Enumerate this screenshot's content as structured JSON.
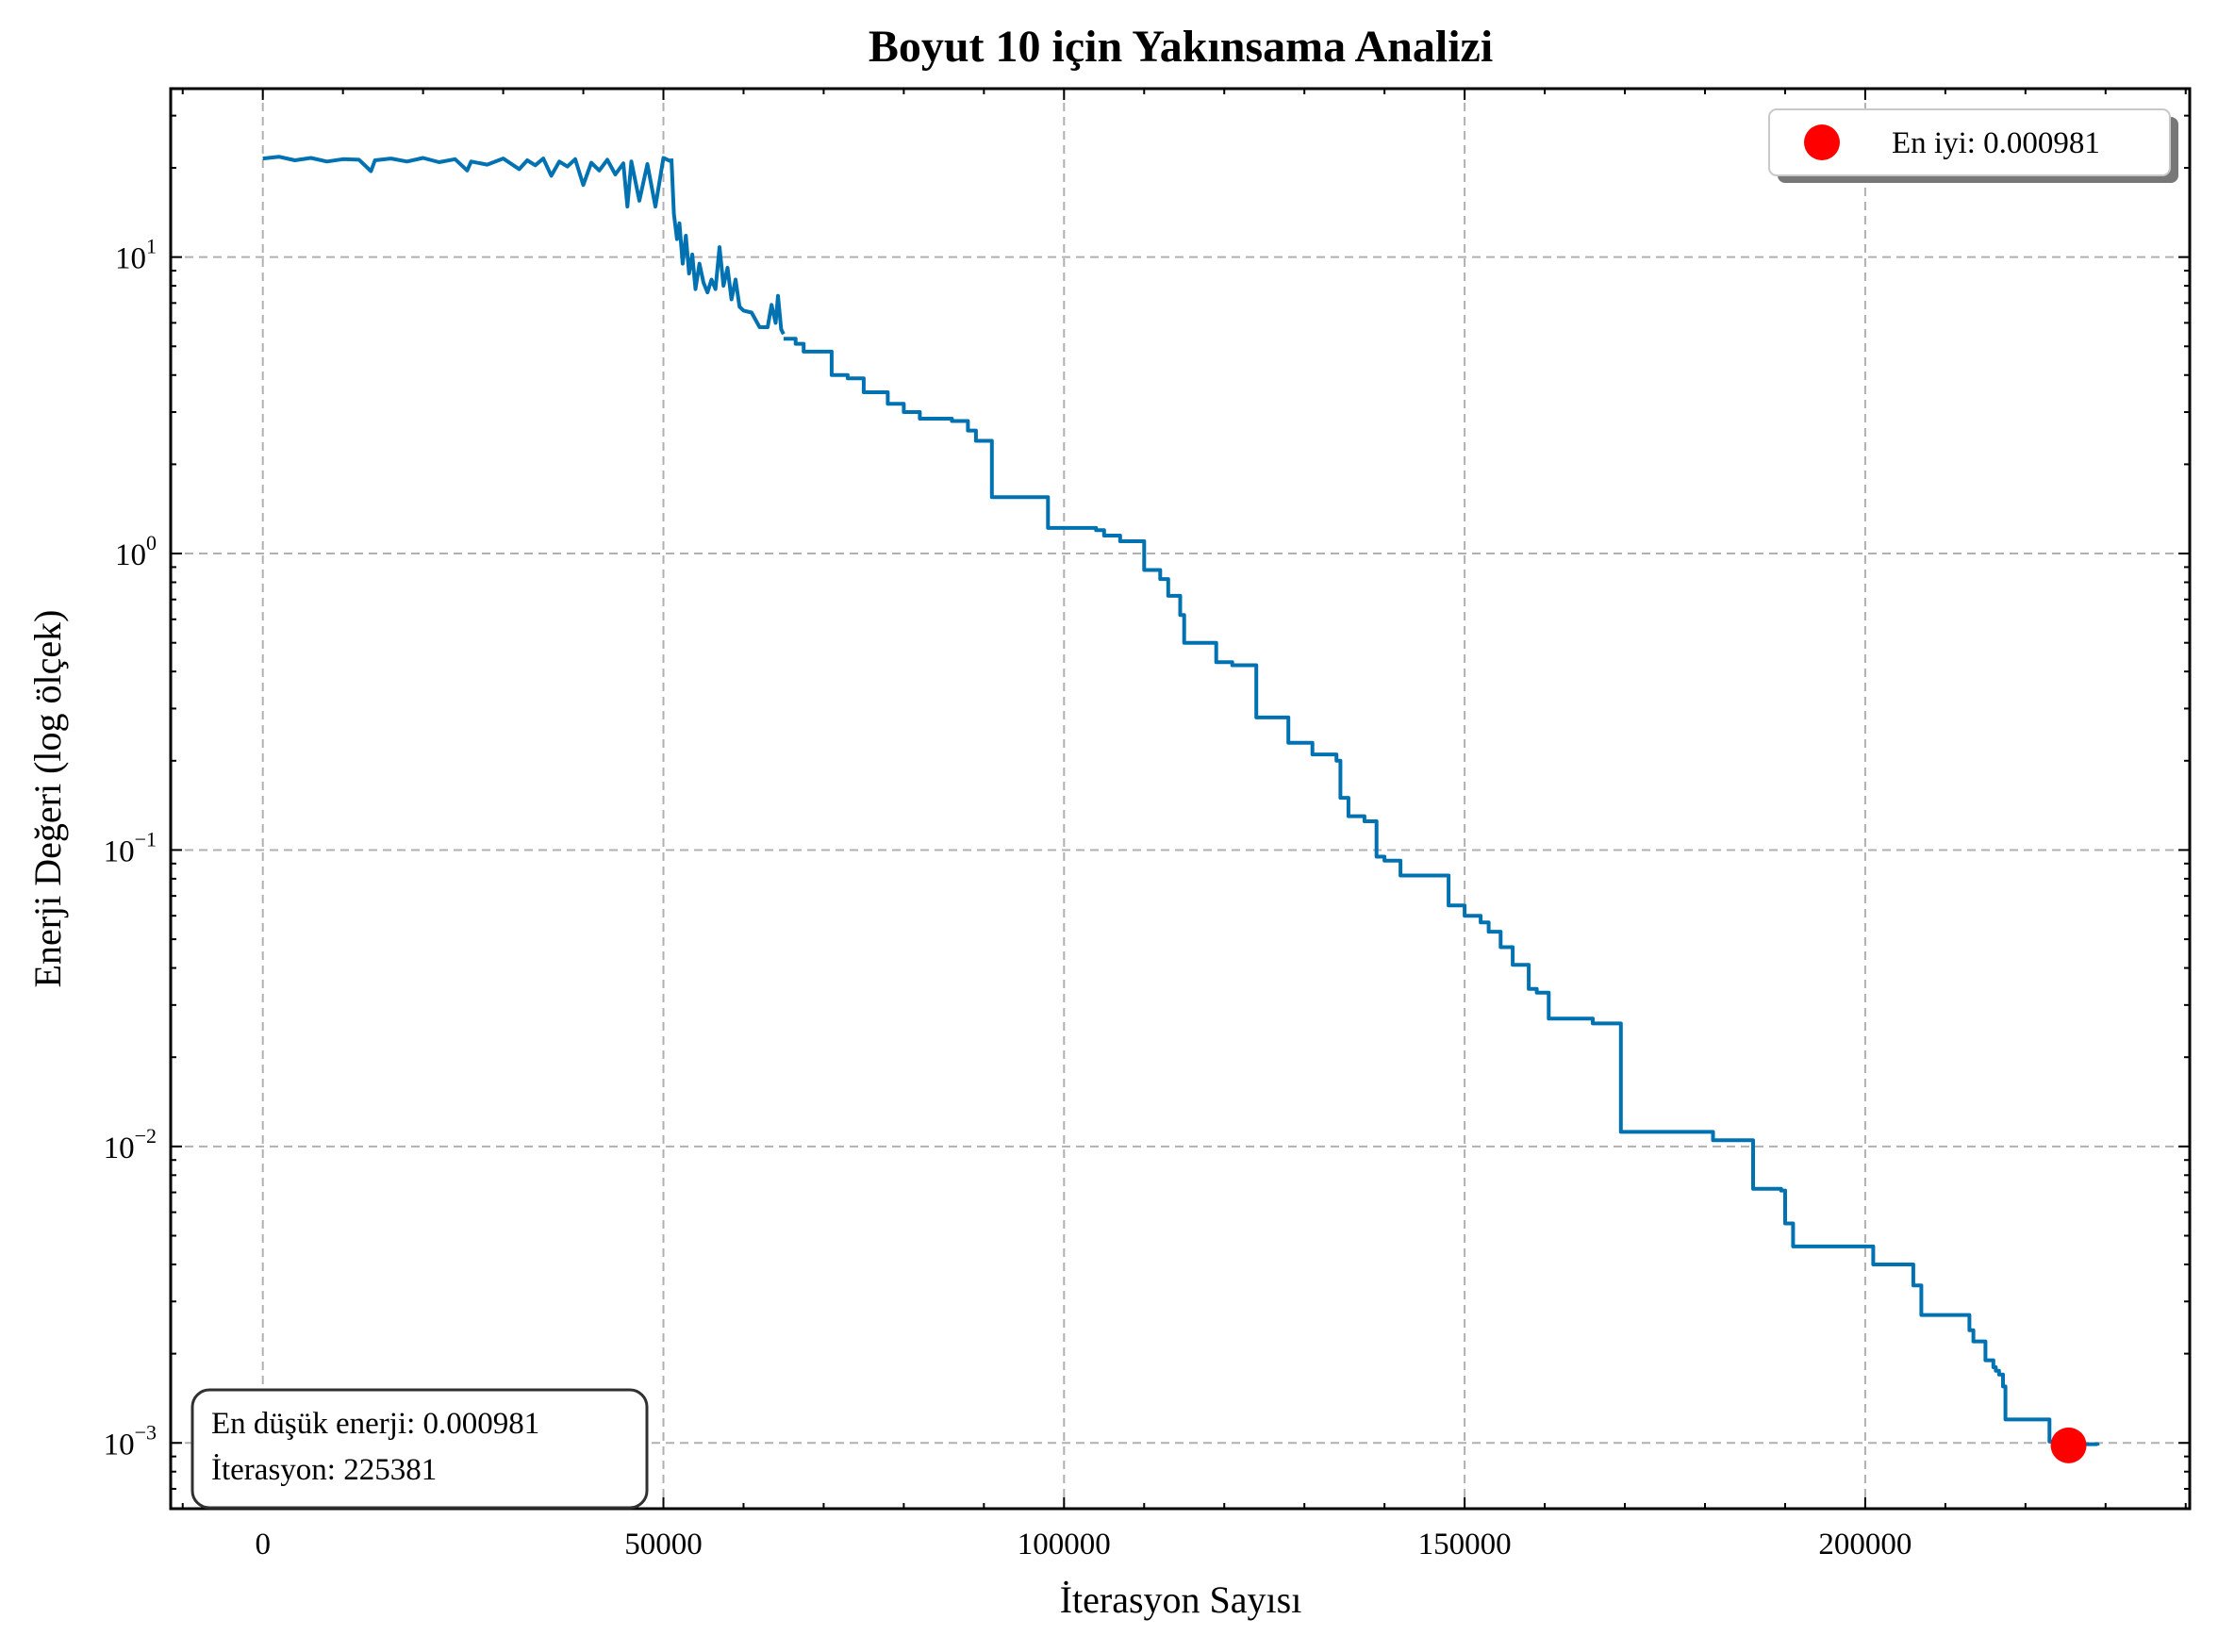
{
  "chart_data": {
    "type": "line",
    "title": "Boyut 10 için Yakınsama Analizi",
    "xlabel": "İterasyon Sayısı",
    "ylabel": "Enerji Değeri (log ölçek)",
    "yscale": "log",
    "xlim": [
      -11500,
      240500
    ],
    "ylim": [
      0.0006,
      37
    ],
    "grid": true,
    "legend_position": "top-right",
    "line_color": "#0072b2",
    "marker_color": "#ff0000",
    "x_ticks": [
      {
        "value": 0,
        "label": "0"
      },
      {
        "value": 50000,
        "label": "50000"
      },
      {
        "value": 100000,
        "label": "100000"
      },
      {
        "value": 150000,
        "label": "150000"
      },
      {
        "value": 200000,
        "label": "200000"
      }
    ],
    "y_ticks": [
      {
        "value": 10,
        "base": "10",
        "exp": "1"
      },
      {
        "value": 1,
        "base": "10",
        "exp": "0"
      },
      {
        "value": 0.1,
        "base": "10",
        "exp": "−1"
      },
      {
        "value": 0.01,
        "base": "10",
        "exp": "−2"
      },
      {
        "value": 0.001,
        "base": "10",
        "exp": "−3"
      }
    ],
    "series": [
      {
        "style": "noisy",
        "x": [
          0,
          2000,
          4000,
          6000,
          8000,
          10000,
          12000,
          13500,
          14000,
          16000,
          18000,
          20000,
          22000,
          24000,
          25500,
          26000,
          28000,
          30000,
          32000,
          33000,
          34000,
          35000,
          36000,
          37000,
          38000,
          39000,
          40000,
          41000,
          42000,
          43000,
          44000,
          45000,
          45500,
          46000,
          47000,
          48000,
          49000,
          50000,
          51000
        ],
        "y": [
          21.5,
          21.8,
          21.2,
          21.6,
          21.0,
          21.4,
          21.3,
          19.5,
          21.2,
          21.5,
          21.0,
          21.6,
          20.9,
          21.4,
          19.6,
          21.0,
          20.5,
          21.5,
          19.8,
          21.2,
          20.4,
          21.5,
          18.8,
          21.0,
          20.2,
          21.4,
          17.5,
          20.8,
          19.6,
          21.3,
          19.0,
          20.7,
          14.8,
          21.0,
          15.5,
          20.6,
          14.8,
          21.6,
          21.0
        ]
      },
      {
        "style": "noisy",
        "x": [
          51000,
          51300,
          51700,
          52000,
          52400,
          52800,
          53200,
          53600,
          54000,
          54500,
          55000,
          55500,
          56000,
          56500,
          57000,
          57500,
          58000,
          58500,
          59000,
          59500,
          60000,
          61000,
          62000,
          63000,
          63500,
          64000,
          64300,
          64700,
          65000
        ],
        "y": [
          21.5,
          14.0,
          11.5,
          13.0,
          9.5,
          11.8,
          8.8,
          10.2,
          7.8,
          9.5,
          8.2,
          7.6,
          8.4,
          7.8,
          10.8,
          8.0,
          9.2,
          7.2,
          8.4,
          6.8,
          6.6,
          6.5,
          5.8,
          5.8,
          6.9,
          6.0,
          7.4,
          5.7,
          5.5
        ]
      },
      {
        "style": "step",
        "x": [
          65000,
          66500,
          67500,
          69000,
          71000,
          73000,
          75000,
          78000,
          80000,
          82000,
          86000,
          88000,
          89000,
          91000,
          98000,
          104000,
          105000,
          107000,
          110000,
          112000,
          113000,
          114500,
          115000,
          119000,
          121000,
          124000,
          128000,
          131000,
          134000,
          134500,
          135500,
          137500,
          139000,
          140000,
          142000,
          148000,
          150000,
          152000,
          153000,
          154500,
          156000,
          158000,
          159000,
          160500,
          161500,
          166000,
          169500,
          181000,
          186000,
          189500,
          190000,
          191000,
          201000,
          206000,
          207000,
          213000,
          213500,
          215000,
          216000,
          216300,
          216700,
          217200,
          217500,
          223000,
          225381,
          229000
        ],
        "y": [
          5.3,
          5.1,
          4.8,
          4.8,
          4.0,
          3.9,
          3.5,
          3.2,
          3.0,
          2.85,
          2.8,
          2.6,
          2.4,
          1.55,
          1.22,
          1.2,
          1.15,
          1.1,
          0.88,
          0.82,
          0.72,
          0.62,
          0.5,
          0.43,
          0.42,
          0.28,
          0.23,
          0.21,
          0.2,
          0.15,
          0.13,
          0.125,
          0.095,
          0.092,
          0.082,
          0.065,
          0.06,
          0.057,
          0.053,
          0.047,
          0.041,
          0.034,
          0.033,
          0.027,
          0.027,
          0.026,
          0.0112,
          0.0105,
          0.0072,
          0.0071,
          0.0055,
          0.0046,
          0.004,
          0.0034,
          0.0027,
          0.0024,
          0.0022,
          0.0019,
          0.0018,
          0.00175,
          0.0017,
          0.00155,
          0.0012,
          0.00101,
          0.00099,
          0.00098
        ]
      }
    ],
    "best_point": {
      "x": 225381,
      "y": 0.000981
    },
    "legend": {
      "label": "En iyi: 0.000981"
    },
    "info_box": {
      "line1": "En düşük enerji: 0.000981",
      "line2": "İterasyon: 225381"
    }
  }
}
